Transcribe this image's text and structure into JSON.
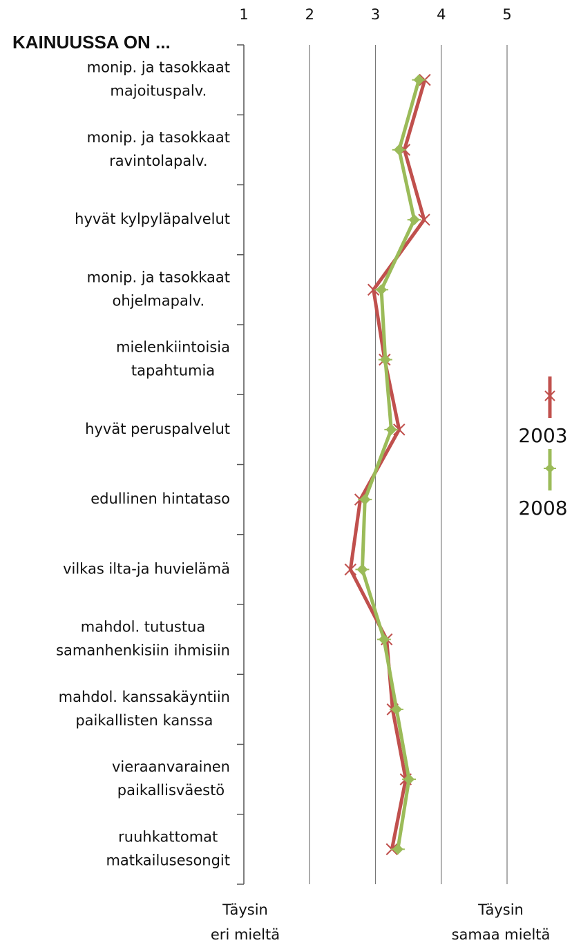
{
  "chart_data": {
    "type": "line",
    "title": "KAINUUSSA ON ...",
    "categories": [
      [
        "monip. ja tasokkaat",
        "majoituspalv."
      ],
      [
        "monip. ja tasokkaat",
        "ravintolapalv."
      ],
      [
        "hyvät kylpyläpalvelut"
      ],
      [
        "monip. ja tasokkaat",
        "ohjelmapalv."
      ],
      [
        "mielenkiintoisia",
        "tapahtumia"
      ],
      [
        "hyvät peruspalvelut"
      ],
      [
        "edullinen hintataso"
      ],
      [
        "vilkas ilta-ja huvielämä"
      ],
      [
        "mahdol. tutustua",
        "samanhenkisiin ihmisiin"
      ],
      [
        "mahdol. kanssakäyntiin",
        "paikallisten kanssa"
      ],
      [
        "vieraanvarainen",
        "paikallisväestö"
      ],
      [
        "ruuhkattomat",
        "matkailusesongit"
      ]
    ],
    "series": [
      {
        "name": "2003",
        "color": "#c0504d",
        "values": [
          3.75,
          3.44,
          3.74,
          2.97,
          3.14,
          3.36,
          2.77,
          2.62,
          3.17,
          3.26,
          3.46,
          3.25
        ]
      },
      {
        "name": "2008",
        "color": "#9bbb59",
        "values": [
          3.66,
          3.36,
          3.59,
          3.09,
          3.15,
          3.24,
          2.84,
          2.8,
          3.13,
          3.32,
          3.51,
          3.34
        ]
      }
    ],
    "xlim": [
      1,
      5
    ],
    "xticks": [
      1,
      2,
      3,
      4,
      5
    ],
    "grid": true,
    "x_min_label": [
      "Täysin",
      "eri mieltä"
    ],
    "x_max_label": [
      "Täysin",
      "samaa mieltä"
    ],
    "legend": "right"
  }
}
